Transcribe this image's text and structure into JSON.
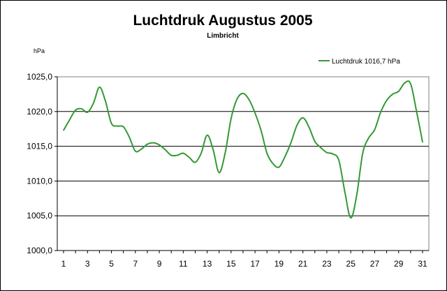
{
  "chart_data": {
    "type": "line",
    "title": "Luchtdruk Augustus 2005",
    "subtitle": "Limbricht",
    "ylabel": "hPa",
    "xlabel": "",
    "ylim": [
      1000,
      1025
    ],
    "xlim": [
      1,
      31
    ],
    "y_ticks": [
      "1000,0",
      "1005,0",
      "1010,0",
      "1015,0",
      "1020,0",
      "1025,0"
    ],
    "x_ticks": [
      "1",
      "3",
      "5",
      "7",
      "9",
      "11",
      "13",
      "15",
      "17",
      "19",
      "21",
      "23",
      "25",
      "27",
      "29",
      "31"
    ],
    "grid": "horizontal",
    "legend_position": "top-right",
    "series": [
      {
        "name": "Luchtdruk 1016,7 hPa",
        "color": "#339933",
        "x": [
          1,
          1.5,
          2,
          2.5,
          3,
          3.5,
          4,
          4.5,
          5,
          5.5,
          6,
          6.5,
          7,
          7.5,
          8,
          8.5,
          9,
          9.5,
          10,
          10.5,
          11,
          11.5,
          12,
          12.5,
          13,
          13.5,
          14,
          14.5,
          15,
          15.5,
          16,
          16.5,
          17,
          17.5,
          18,
          18.5,
          19,
          19.5,
          20,
          20.5,
          21,
          21.5,
          22,
          22.5,
          23,
          23.5,
          24,
          24.5,
          25,
          25.5,
          26,
          26.5,
          27,
          27.5,
          28,
          28.5,
          29,
          29.5,
          30,
          30.5,
          31
        ],
        "values": [
          1017.3,
          1018.8,
          1020.2,
          1020.4,
          1019.9,
          1021.2,
          1023.5,
          1021.5,
          1018.3,
          1017.9,
          1017.8,
          1016.3,
          1014.3,
          1014.6,
          1015.3,
          1015.5,
          1015.2,
          1014.5,
          1013.7,
          1013.7,
          1014.0,
          1013.4,
          1012.7,
          1014.0,
          1016.6,
          1014.5,
          1011.2,
          1014.0,
          1019.0,
          1021.8,
          1022.6,
          1021.7,
          1019.8,
          1017.3,
          1014.0,
          1012.5,
          1012.0,
          1013.5,
          1015.5,
          1018.0,
          1019.1,
          1017.8,
          1015.7,
          1014.8,
          1014.1,
          1013.9,
          1013.0,
          1008.5,
          1004.7,
          1008.0,
          1014.0,
          1016.2,
          1017.4,
          1019.9,
          1021.6,
          1022.5,
          1022.9,
          1024.1,
          1024.0,
          1020.0,
          1015.6
        ]
      }
    ]
  }
}
